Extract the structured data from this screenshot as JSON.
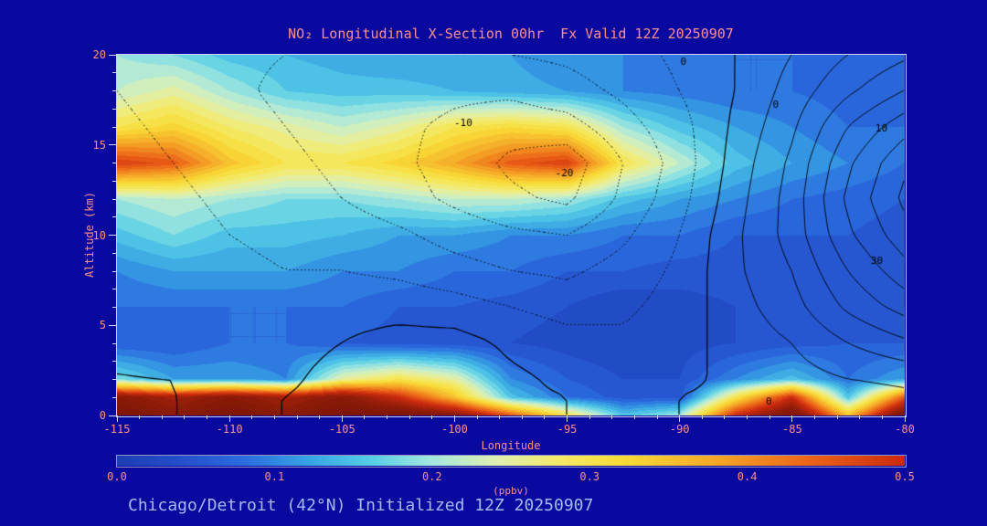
{
  "page": {
    "bg": "#0909a0",
    "title_color": "#ff8c8c",
    "axis_color": "#ff8c8c",
    "footer_color": "#a4baf5"
  },
  "header": {
    "title": "NO₂ Longitudinal X-Section 00hr  Fx Valid 12Z 20250907"
  },
  "footer": {
    "subtitle": "Chicago/Detroit (42°N) Initialized 12Z 20250907"
  },
  "axes": {
    "x_label": "Longitude",
    "y_label": "Altitude (km)",
    "x_ticks": [
      -115,
      -110,
      -105,
      -100,
      -95,
      -90,
      -85,
      -80
    ],
    "y_ticks": [
      0,
      5,
      10,
      15,
      20
    ],
    "x_range": [
      -115,
      -80
    ],
    "y_range": [
      0,
      20
    ]
  },
  "colorbar": {
    "label": "(ppbv)",
    "ticks": [
      "0.0",
      "0.1",
      "0.2",
      "0.3",
      "0.4",
      "0.5"
    ],
    "min": 0,
    "max": 0.5
  },
  "chart_data": {
    "type": "heatmap",
    "title": "NO₂ Longitudinal X-Section 00hr  Fx Valid 12Z 20250907",
    "xlabel": "Longitude",
    "ylabel": "Altitude (km)",
    "units": "ppbv",
    "xlim": [
      -115,
      -80
    ],
    "ylim": [
      0,
      20
    ],
    "x": [
      -115,
      -112.5,
      -110,
      -107.5,
      -105,
      -102.5,
      -100,
      -97.5,
      -95,
      -92.5,
      -90,
      -87.5,
      -85,
      -82.5,
      -80
    ],
    "y": [
      0,
      1,
      2,
      4,
      6,
      8,
      10,
      12,
      14,
      16,
      18,
      20
    ],
    "values": [
      [
        0.65,
        0.6,
        0.65,
        0.6,
        0.65,
        0.65,
        0.6,
        0.45,
        0.3,
        0.15,
        0.2,
        0.5,
        0.65,
        0.35,
        0.65
      ],
      [
        0.6,
        0.55,
        0.6,
        0.55,
        0.6,
        0.5,
        0.35,
        0.15,
        0.08,
        0.05,
        0.05,
        0.3,
        0.5,
        0.15,
        0.45
      ],
      [
        0.18,
        0.12,
        0.12,
        0.1,
        0.25,
        0.3,
        0.25,
        0.1,
        0.06,
        0.04,
        0.04,
        0.1,
        0.15,
        0.08,
        0.12
      ],
      [
        0.06,
        0.06,
        0.08,
        0.08,
        0.06,
        0.05,
        0.05,
        0.04,
        0.03,
        0.02,
        0.03,
        0.04,
        0.05,
        0.06,
        0.06
      ],
      [
        0.08,
        0.08,
        0.08,
        0.08,
        0.08,
        0.06,
        0.06,
        0.05,
        0.04,
        0.02,
        0.03,
        0.04,
        0.05,
        0.05,
        0.06
      ],
      [
        0.1,
        0.12,
        0.12,
        0.12,
        0.1,
        0.1,
        0.08,
        0.08,
        0.06,
        0.06,
        0.05,
        0.05,
        0.05,
        0.05,
        0.05
      ],
      [
        0.15,
        0.18,
        0.15,
        0.15,
        0.14,
        0.12,
        0.12,
        0.1,
        0.1,
        0.08,
        0.08,
        0.06,
        0.06,
        0.06,
        0.05
      ],
      [
        0.2,
        0.22,
        0.2,
        0.18,
        0.18,
        0.2,
        0.22,
        0.22,
        0.2,
        0.15,
        0.12,
        0.1,
        0.08,
        0.07,
        0.06
      ],
      [
        0.48,
        0.45,
        0.35,
        0.3,
        0.3,
        0.33,
        0.38,
        0.45,
        0.48,
        0.3,
        0.22,
        0.15,
        0.12,
        0.1,
        0.08
      ],
      [
        0.3,
        0.33,
        0.28,
        0.25,
        0.22,
        0.25,
        0.3,
        0.32,
        0.3,
        0.2,
        0.15,
        0.12,
        0.1,
        0.08,
        0.08
      ],
      [
        0.22,
        0.25,
        0.2,
        0.16,
        0.15,
        0.15,
        0.14,
        0.13,
        0.12,
        0.1,
        0.09,
        0.08,
        0.08,
        0.07,
        0.07
      ],
      [
        0.2,
        0.18,
        0.15,
        0.14,
        0.13,
        0.12,
        0.12,
        0.12,
        0.1,
        0.1,
        0.08,
        0.08,
        0.08,
        0.07,
        0.07
      ]
    ],
    "band_step": 0.02,
    "colormap": [
      [
        0.0,
        "#1e3eb4"
      ],
      [
        0.04,
        "#2450cc"
      ],
      [
        0.08,
        "#2c6de0"
      ],
      [
        0.12,
        "#37a2e4"
      ],
      [
        0.16,
        "#55cde6"
      ],
      [
        0.2,
        "#a5e8de"
      ],
      [
        0.24,
        "#dff0b2"
      ],
      [
        0.28,
        "#f4ea6a"
      ],
      [
        0.32,
        "#f8dd38"
      ],
      [
        0.38,
        "#f6a827"
      ],
      [
        0.44,
        "#ec6418"
      ],
      [
        0.5,
        "#cc2a0e"
      ],
      [
        0.58,
        "#8f1c08"
      ],
      [
        0.7,
        "#701105"
      ]
    ],
    "overlay_contours": {
      "description": "wind cross-section contours, dotted = negative",
      "levels": [
        -30,
        -25,
        -20,
        -15,
        -10,
        -5,
        0,
        5,
        10,
        15,
        20,
        25,
        30,
        35
      ],
      "negative_style": "dotted",
      "values": [
        [
          1,
          0,
          0,
          0,
          1,
          2,
          2,
          1,
          0,
          0,
          0,
          1,
          1,
          2,
          3
        ],
        [
          1,
          0,
          0,
          0,
          2,
          4,
          3,
          1,
          0,
          -1,
          0,
          1,
          2,
          3,
          4
        ],
        [
          0,
          0,
          -1,
          -1,
          2,
          5,
          4,
          1,
          -1,
          -2,
          -1,
          1,
          3,
          5,
          6
        ],
        [
          0,
          -1,
          -2,
          -2,
          0,
          2,
          2,
          -1,
          -3,
          -4,
          -2,
          2,
          5,
          10,
          14
        ],
        [
          -1,
          -2,
          -3,
          -3,
          -2,
          -2,
          -3,
          -5,
          -7,
          -6,
          -3,
          3,
          8,
          16,
          22
        ],
        [
          -1,
          -2,
          -4,
          -5,
          -5,
          -6,
          -8,
          -10,
          -11,
          -8,
          -4,
          4,
          10,
          20,
          28
        ],
        [
          -2,
          -3,
          -5,
          -6,
          -7,
          -9,
          -12,
          -14,
          -15,
          -11,
          -5,
          4,
          12,
          24,
          33
        ],
        [
          -2,
          -4,
          -6,
          -8,
          -10,
          -13,
          -16,
          -19,
          -21,
          -14,
          -7,
          3,
          12,
          26,
          36
        ],
        [
          -3,
          -5,
          -7,
          -9,
          -11,
          -14,
          -17,
          -21,
          -23,
          -15,
          -8,
          2,
          11,
          24,
          34
        ],
        [
          -4,
          -6,
          -8,
          -10,
          -12,
          -14,
          -16,
          -18,
          -17,
          -12,
          -7,
          1,
          9,
          20,
          28
        ],
        [
          -5,
          -7,
          -9,
          -11,
          -12,
          -13,
          -14,
          -14,
          -12,
          -9,
          -5,
          0,
          7,
          14,
          20
        ],
        [
          -6,
          -8,
          -9,
          -10,
          -11,
          -11,
          -11,
          -10,
          -9,
          -7,
          -4,
          0,
          5,
          10,
          14
        ]
      ]
    },
    "contour_labels": [
      {
        "text": "-10",
        "x": -99.6,
        "y": 16.2
      },
      {
        "text": "-20",
        "x": -95.1,
        "y": 13.4
      },
      {
        "text": "0",
        "x": -89.8,
        "y": 19.6
      },
      {
        "text": "0",
        "x": -85.7,
        "y": 17.2
      },
      {
        "text": "10",
        "x": -81.0,
        "y": 15.9
      },
      {
        "text": "30",
        "x": -81.2,
        "y": 8.5
      },
      {
        "text": "0",
        "x": -86.0,
        "y": 0.7
      }
    ]
  }
}
